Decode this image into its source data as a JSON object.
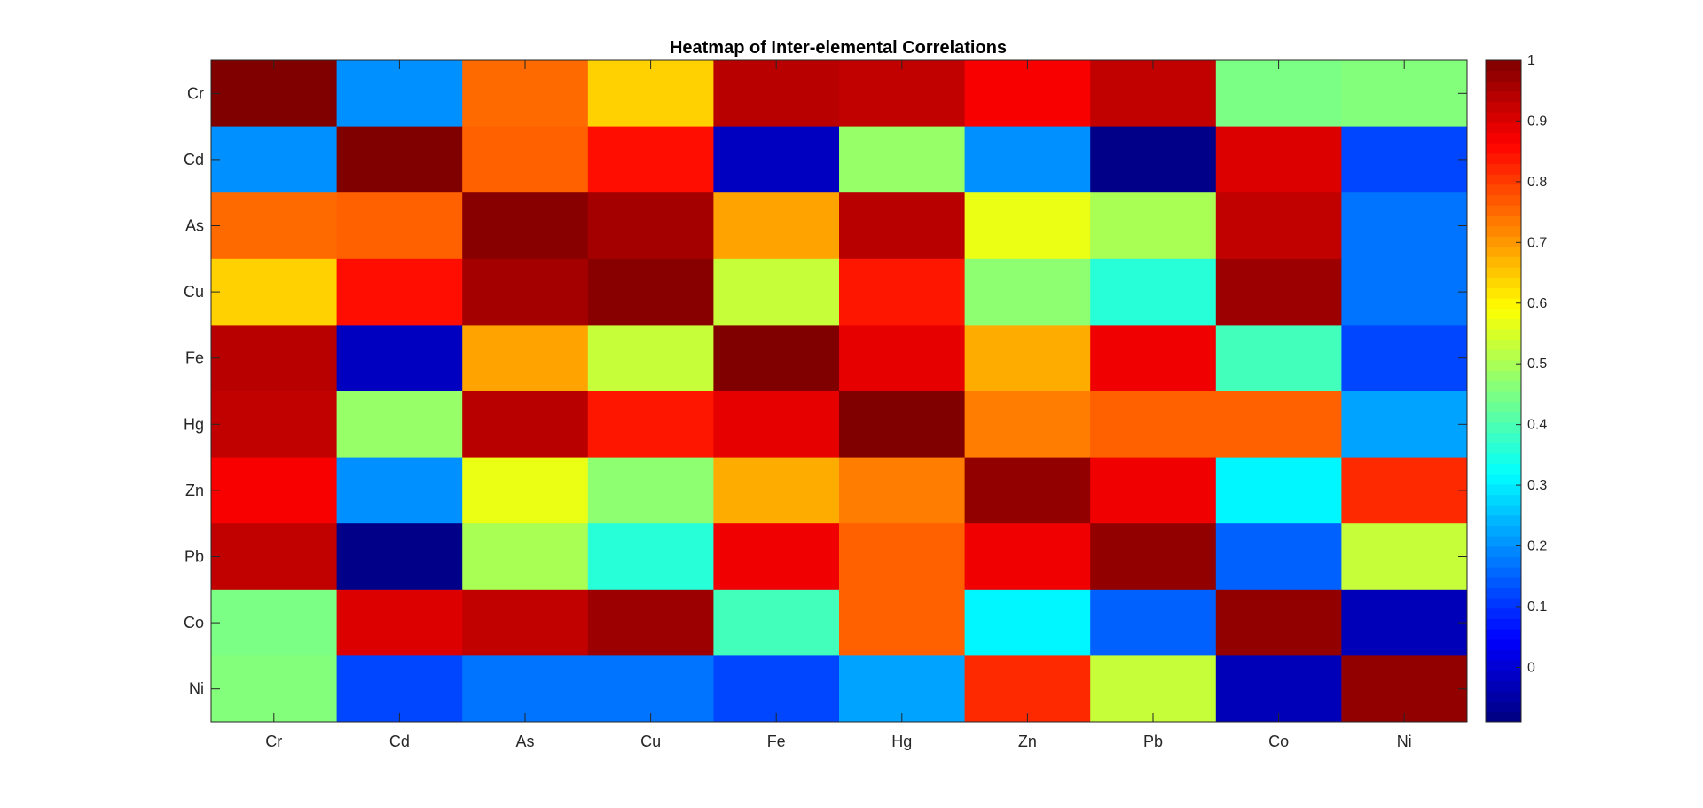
{
  "chart_data": {
    "type": "heatmap",
    "title": "Heatmap of Inter-elemental Correlations",
    "xlabel": "",
    "ylabel": "",
    "x_labels": [
      "Cr",
      "Cd",
      "As",
      "Cu",
      "Fe",
      "Hg",
      "Zn",
      "Pb",
      "Co",
      "Ni"
    ],
    "y_labels": [
      "Cr",
      "Cd",
      "As",
      "Cu",
      "Fe",
      "Hg",
      "Zn",
      "Pb",
      "Co",
      "Ni"
    ],
    "values": [
      [
        1.0,
        0.2,
        0.75,
        0.64,
        0.94,
        0.93,
        0.87,
        0.93,
        0.45,
        0.46
      ],
      [
        0.2,
        1.0,
        0.76,
        0.85,
        -0.02,
        0.48,
        0.2,
        -0.08,
        0.9,
        0.12
      ],
      [
        0.75,
        0.76,
        0.99,
        0.96,
        0.69,
        0.94,
        0.57,
        0.5,
        0.93,
        0.17
      ],
      [
        0.64,
        0.85,
        0.96,
        0.99,
        0.53,
        0.84,
        0.47,
        0.36,
        0.97,
        0.17
      ],
      [
        0.94,
        -0.02,
        0.69,
        0.53,
        1.0,
        0.89,
        0.68,
        0.88,
        0.39,
        0.12
      ],
      [
        0.93,
        0.48,
        0.94,
        0.84,
        0.89,
        1.0,
        0.73,
        0.76,
        0.76,
        0.22
      ],
      [
        0.87,
        0.2,
        0.57,
        0.47,
        0.68,
        0.73,
        0.98,
        0.88,
        0.31,
        0.82
      ],
      [
        0.93,
        -0.08,
        0.5,
        0.36,
        0.88,
        0.76,
        0.88,
        0.98,
        0.15,
        0.53
      ],
      [
        0.45,
        0.9,
        0.93,
        0.97,
        0.39,
        0.76,
        0.31,
        0.15,
        0.98,
        -0.03
      ],
      [
        0.46,
        0.12,
        0.17,
        0.17,
        0.12,
        0.22,
        0.82,
        0.53,
        -0.03,
        0.98
      ]
    ],
    "colormap": "jet",
    "clim": [
      -0.09,
      1.0
    ],
    "colorbar_ticks": [
      "0",
      "0.1",
      "0.2",
      "0.3",
      "0.4",
      "0.5",
      "0.6",
      "0.7",
      "0.8",
      "0.9",
      "1"
    ],
    "colorbar_location": "right",
    "grid": false
  }
}
